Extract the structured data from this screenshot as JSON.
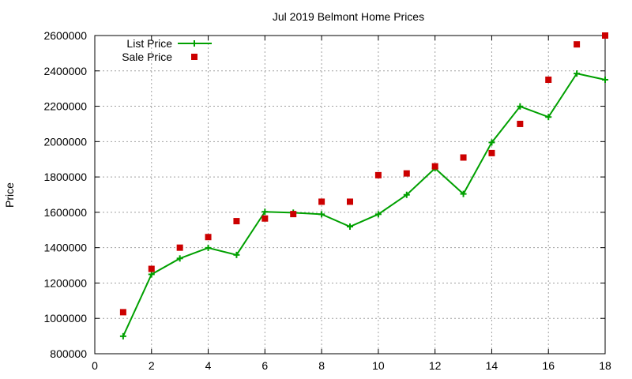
{
  "chart_data": {
    "type": "line",
    "title": "Jul 2019 Belmont Home Prices",
    "xlabel": "",
    "ylabel": "Price",
    "xlim": [
      0,
      18
    ],
    "ylim": [
      800000,
      2600000
    ],
    "x_ticks": [
      0,
      2,
      4,
      6,
      8,
      10,
      12,
      14,
      16,
      18
    ],
    "y_ticks": [
      800000,
      1000000,
      1200000,
      1400000,
      1600000,
      1800000,
      2000000,
      2200000,
      2400000,
      2600000
    ],
    "grid": true,
    "legend_position": "top-left",
    "x": [
      1,
      2,
      3,
      4,
      5,
      6,
      7,
      8,
      9,
      10,
      11,
      12,
      13,
      14,
      15,
      16,
      17,
      18
    ],
    "series": [
      {
        "name": "List Price",
        "style": "lines+points",
        "color": "#00a000",
        "values": [
          899000,
          1249000,
          1339000,
          1399000,
          1359000,
          1603000,
          1598000,
          1589000,
          1519000,
          1589000,
          1699000,
          1849000,
          1704000,
          1995000,
          2199000,
          2139000,
          2385000,
          2350000
        ]
      },
      {
        "name": "Sale Price",
        "style": "points",
        "color": "#cc0000",
        "values": [
          1035000,
          1280000,
          1400000,
          1460000,
          1550000,
          1565000,
          1590000,
          1660000,
          1660000,
          1810000,
          1820000,
          1860000,
          1910000,
          1935000,
          2100000,
          2350000,
          2550000,
          2600000
        ]
      }
    ]
  }
}
